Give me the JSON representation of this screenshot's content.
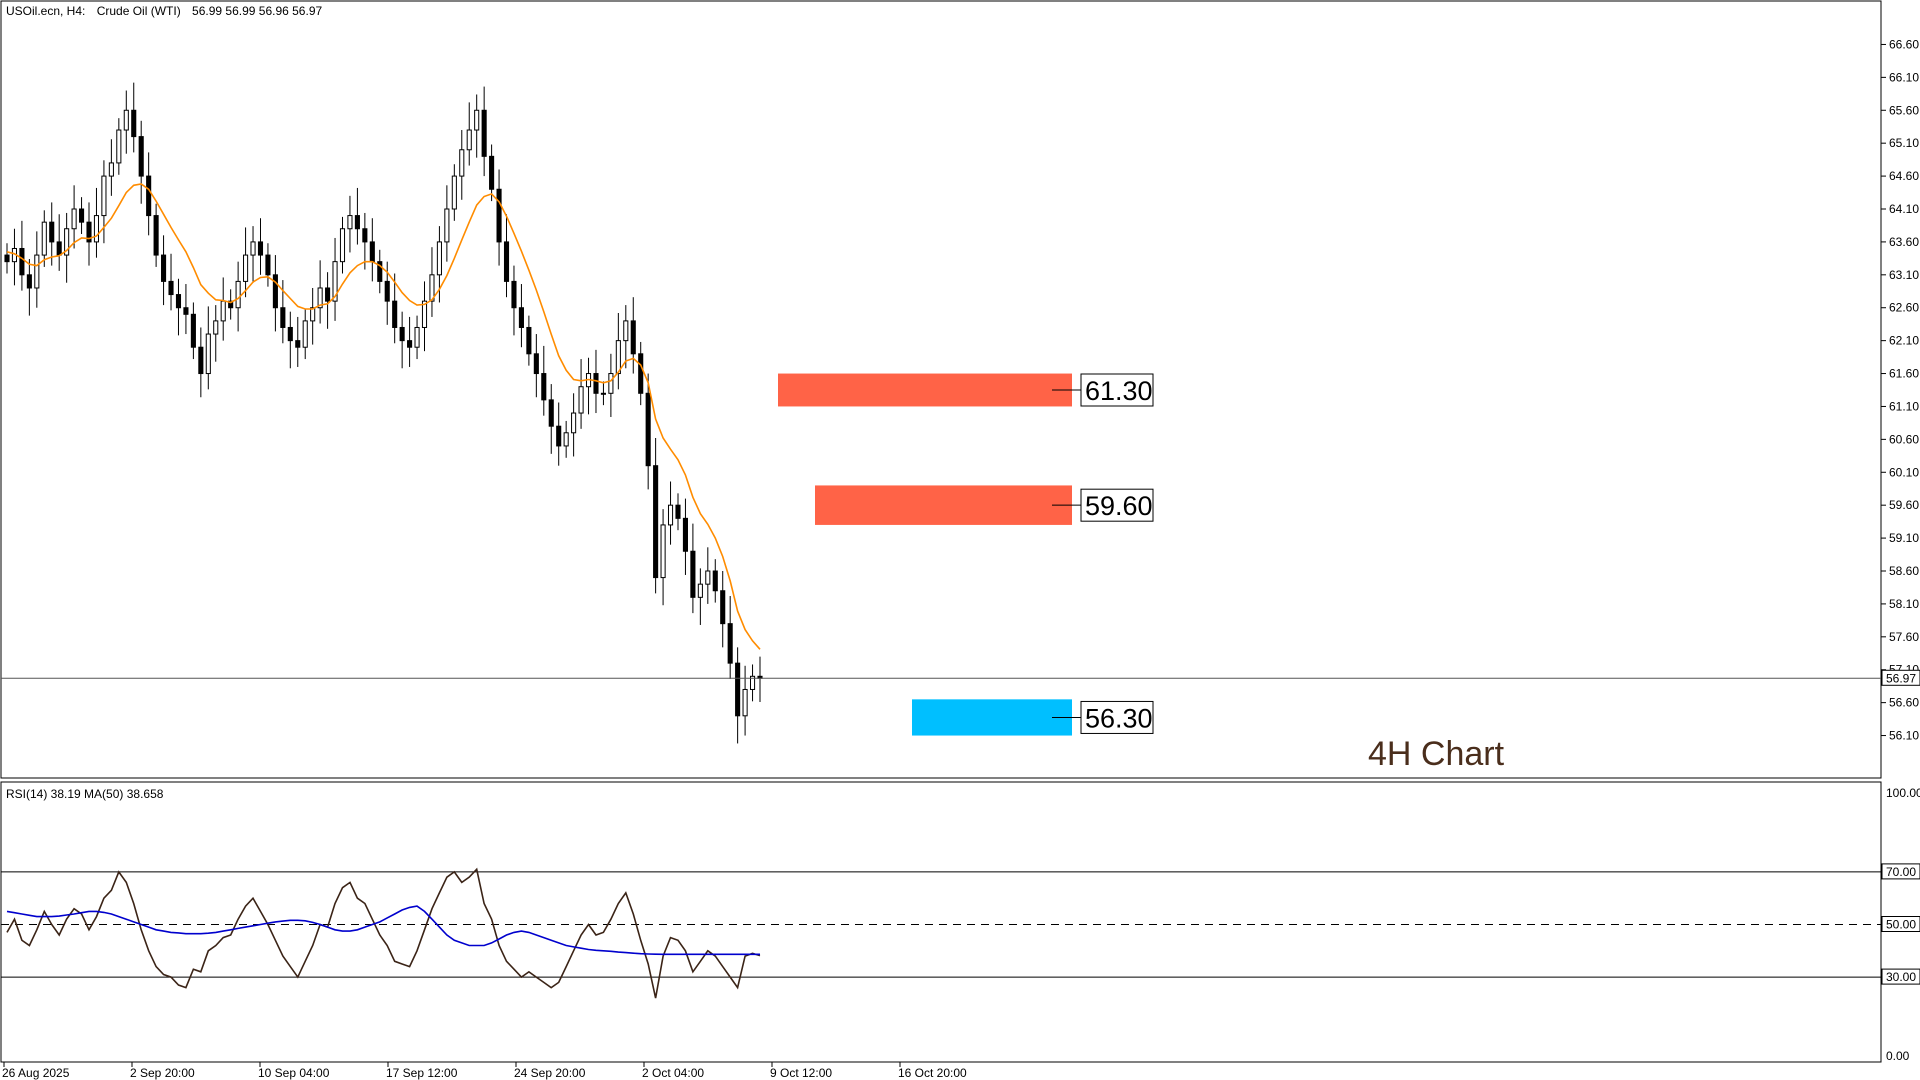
{
  "header": {
    "symbol": "USOil.ecn, H4:",
    "name": "Crude Oil (WTI)",
    "ohlc": "56.99 56.99 56.96 56.97"
  },
  "annotation": "4H Chart",
  "price_axis_labels": [
    "66.60",
    "66.10",
    "65.60",
    "65.10",
    "64.60",
    "64.10",
    "63.60",
    "63.10",
    "62.60",
    "62.10",
    "61.60",
    "61.10",
    "60.60",
    "60.10",
    "59.60",
    "59.10",
    "58.60",
    "58.10",
    "57.60",
    "57.10",
    "56.60",
    "56.10"
  ],
  "current_price_label": "56.97",
  "rsi_header": "RSI(14) 38.19 MA(50) 38.658",
  "rsi_axis_labels": [
    "100.00",
    "70.00",
    "50.00",
    "30.00",
    "0.00"
  ],
  "time_labels": [
    "26 Aug 2025",
    "2 Sep 20:00",
    "10 Sep 04:00",
    "17 Sep 12:00",
    "24 Sep 20:00",
    "2 Oct 04:00",
    "9 Oct 12:00",
    "16 Oct 20:00"
  ],
  "zones": [
    {
      "label": "61.30",
      "low": 61.1,
      "high": 61.6,
      "color": "#ff6347"
    },
    {
      "label": "59.60",
      "low": 59.3,
      "high": 59.9,
      "color": "#ff6347"
    },
    {
      "label": "56.30",
      "low": 56.1,
      "high": 56.65,
      "color": "#00bfff"
    }
  ],
  "colors": {
    "candle": "#000000",
    "ma_price": "#ff8c00",
    "rsi_line": "#3b2417",
    "rsi_ma": "#0000cd",
    "annotation": "#4a2e1c"
  },
  "chart_data": [
    {
      "type": "line",
      "panel": "price",
      "ylim": [
        55.85,
        66.85
      ],
      "current_price": 56.97,
      "series": [
        {
          "name": "",
          "values": [
            63.3,
            63.5,
            63.1,
            62.9,
            63.4,
            63.9,
            63.6,
            63.4,
            63.8,
            64.1,
            63.9,
            63.6,
            64.0,
            64.6,
            64.8,
            65.3,
            65.6,
            65.2,
            64.6,
            64.0,
            63.4,
            63.0,
            62.8,
            62.6,
            62.5,
            62.0,
            61.6,
            62.2,
            62.4,
            62.7,
            62.6,
            63.0,
            63.4,
            63.6,
            63.4,
            63.1,
            62.6,
            62.3,
            62.1,
            62.0,
            62.4,
            62.6,
            62.9,
            62.7,
            63.3,
            63.8,
            64.0,
            63.8,
            63.6,
            63.3,
            63.0,
            62.7,
            62.3,
            62.1,
            62.0,
            62.3,
            62.7,
            63.1,
            63.6,
            64.1,
            64.6,
            65.0,
            65.3,
            65.6,
            64.9,
            64.4,
            63.6,
            63.0,
            62.6,
            62.3,
            61.9,
            61.6,
            61.2,
            60.8,
            60.5,
            60.7,
            61.0,
            61.4,
            61.6,
            61.3,
            61.3,
            61.6,
            62.1,
            62.4,
            61.9,
            61.3,
            60.2,
            58.5,
            59.3,
            59.6,
            59.4,
            58.9,
            58.2,
            58.4,
            58.6,
            58.3,
            57.8,
            57.2,
            56.4,
            56.8,
            57.0,
            56.97
          ]
        },
        {
          "name": "",
          "values": [
            63.45,
            63.42,
            63.35,
            63.26,
            63.24,
            63.33,
            63.37,
            63.39,
            63.47,
            63.59,
            63.66,
            63.65,
            63.69,
            63.82,
            63.96,
            64.15,
            64.35,
            64.46,
            64.48,
            64.4,
            64.22,
            64.02,
            63.82,
            63.63,
            63.45,
            63.21,
            62.95,
            62.82,
            62.72,
            62.71,
            62.68,
            62.74,
            62.86,
            62.99,
            63.06,
            63.07,
            62.99,
            62.86,
            62.74,
            62.62,
            62.58,
            62.58,
            62.64,
            62.66,
            62.77,
            62.96,
            63.13,
            63.24,
            63.3,
            63.3,
            63.24,
            63.14,
            62.99,
            62.83,
            62.71,
            62.64,
            62.65,
            62.72,
            62.88,
            63.09,
            63.35,
            63.63,
            63.9,
            64.16,
            64.29,
            64.33,
            64.21,
            63.99,
            63.73,
            63.46,
            63.17,
            62.87,
            62.54,
            62.2,
            61.87,
            61.65,
            61.51,
            61.49,
            61.51,
            61.49,
            61.46,
            61.49,
            61.62,
            61.79,
            61.83,
            61.73,
            61.46,
            60.91,
            60.62,
            60.45,
            60.29,
            60.06,
            59.72,
            59.47,
            59.31,
            59.1,
            58.82,
            58.45,
            57.99,
            57.71,
            57.54,
            57.41
          ]
        }
      ]
    },
    {
      "type": "line",
      "panel": "rsi",
      "ylim": [
        0,
        100
      ],
      "levels": [
        70,
        50,
        30
      ],
      "series": [
        {
          "name": "",
          "values": [
            47,
            52,
            44,
            42,
            48,
            55,
            50,
            46,
            52,
            56,
            54,
            48,
            53,
            60,
            63,
            70,
            66,
            58,
            48,
            40,
            34,
            31,
            30,
            27,
            26,
            33,
            32,
            40,
            42,
            45,
            46,
            52,
            57,
            60,
            55,
            50,
            44,
            38,
            34,
            30,
            36,
            42,
            50,
            49,
            58,
            64,
            66,
            60,
            58,
            52,
            46,
            42,
            36,
            35,
            34,
            40,
            48,
            56,
            62,
            68,
            70,
            66,
            68,
            71,
            58,
            52,
            42,
            36,
            33,
            30,
            32,
            30,
            28,
            26,
            28,
            34,
            40,
            46,
            50,
            46,
            47,
            52,
            58,
            62,
            54,
            44,
            35,
            22,
            38,
            45,
            44,
            40,
            32,
            36,
            40,
            38,
            34,
            30,
            26,
            38,
            39,
            38.19
          ]
        },
        {
          "name": "",
          "values": [
            55,
            54.5,
            54,
            53.5,
            53,
            53,
            53,
            53.2,
            53.6,
            54,
            54.5,
            55,
            55,
            54.6,
            54,
            53,
            52,
            51,
            50,
            49,
            48,
            47.5,
            47,
            46.8,
            46.5,
            46.5,
            46.5,
            46.7,
            47,
            47.5,
            48,
            48.5,
            49,
            49.5,
            50,
            50.5,
            51,
            51.3,
            51.6,
            51.6,
            51.4,
            50.8,
            50,
            49,
            48,
            47.5,
            47.5,
            48,
            49,
            50,
            51,
            52.5,
            54,
            55.5,
            56.5,
            57,
            55,
            52,
            49,
            46,
            44,
            43,
            42,
            42,
            42,
            43,
            44.5,
            46,
            47,
            47.5,
            47,
            46,
            45,
            44,
            43,
            42,
            41.5,
            41,
            40.5,
            40.2,
            40,
            39.8,
            39.5,
            39.3,
            39.1,
            38.9,
            38.8,
            38.7,
            38.66,
            38.658,
            38.658,
            38.658,
            38.658,
            38.658,
            38.658,
            38.658,
            38.658,
            38.658,
            38.658,
            38.658,
            38.658,
            38.658
          ]
        }
      ]
    }
  ]
}
